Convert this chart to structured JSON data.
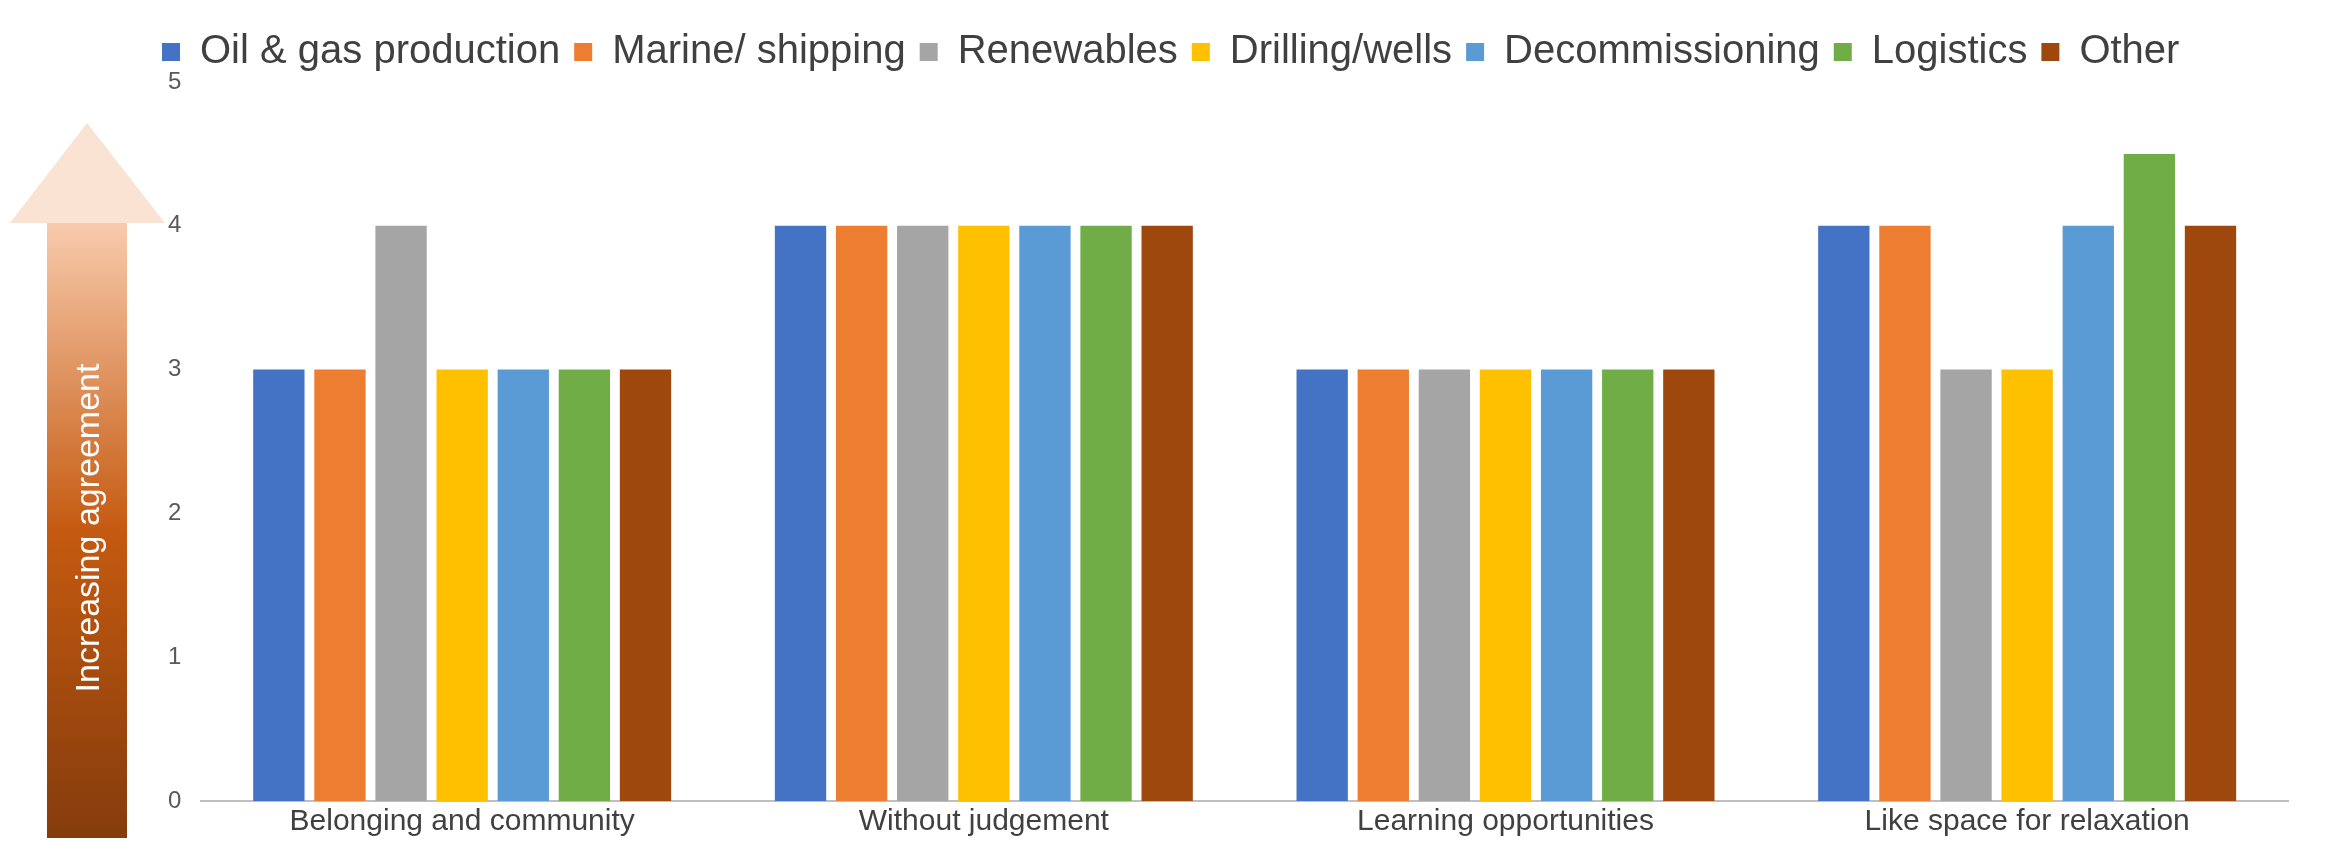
{
  "chart_data": {
    "type": "bar",
    "ylabel": "Increasing agreement",
    "categories": [
      "Belonging and community",
      "Without judgement",
      "Learning opportunities",
      "Like space for relaxation"
    ],
    "series": [
      {
        "name": "Oil & gas production",
        "color": "#4472c4",
        "values": [
          3,
          4,
          3,
          4
        ]
      },
      {
        "name": "Marine/ shipping",
        "color": "#ed7d31",
        "values": [
          3,
          4,
          3,
          4
        ]
      },
      {
        "name": "Renewables",
        "color": "#a5a5a5",
        "values": [
          4,
          4,
          3,
          3
        ]
      },
      {
        "name": "Drilling/wells",
        "color": "#ffc000",
        "values": [
          3,
          4,
          3,
          3
        ]
      },
      {
        "name": "Decommissioning",
        "color": "#5b9bd5",
        "values": [
          3,
          4,
          3,
          4
        ]
      },
      {
        "name": "Logistics",
        "color": "#70ad47",
        "values": [
          3,
          4,
          3,
          4.5
        ]
      },
      {
        "name": "Other",
        "color": "#9e480e",
        "values": [
          3,
          4,
          3,
          4
        ]
      }
    ],
    "ylim": [
      0,
      5
    ],
    "yticks": [
      0,
      1,
      2,
      3,
      4,
      5
    ],
    "grid": false,
    "legend": "top"
  }
}
